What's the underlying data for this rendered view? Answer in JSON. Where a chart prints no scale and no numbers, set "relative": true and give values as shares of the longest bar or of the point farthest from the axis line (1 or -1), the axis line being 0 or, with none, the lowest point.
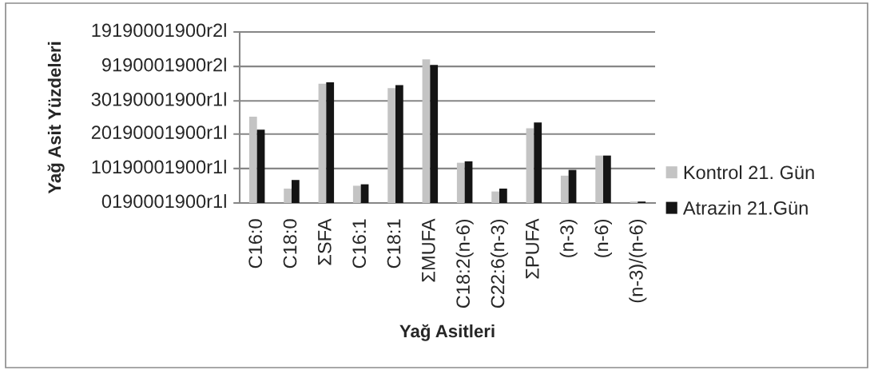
{
  "chart_data": {
    "type": "bar",
    "relative": true,
    "xlabel": "Yağ Asitleri",
    "annotations": [
      "Yağ Asit Yüzdeleri",
      "0190001900r1l"
    ],
    "categories": [
      "C16:0",
      "C18:0",
      "ΣSFA",
      "C16:1",
      "C18:1",
      "ΣMUFA",
      "C18:2(n-6)",
      "C22:6(n-3)",
      "ΣPUFA",
      "(n-3)",
      "(n-6)",
      "(n-3)/(n-6)"
    ],
    "series": [
      {
        "name": "Kontrol 21. Gün",
        "color": "#c4c4c4",
        "values": [
          0.6,
          0.1,
          0.83,
          0.12,
          0.8,
          1.0,
          0.28,
          0.08,
          0.52,
          0.19,
          0.33,
          0.01
        ]
      },
      {
        "name": "Atrazin 21.Gün",
        "color": "#141414",
        "values": [
          0.51,
          0.16,
          0.84,
          0.13,
          0.82,
          0.96,
          0.29,
          0.1,
          0.56,
          0.23,
          0.33,
          0.01
        ]
      }
    ],
    "ref_lines": [
      {
        "axis": "y",
        "value": 0.24,
        "label": "10190001900r1l",
        "color": "#868686"
      },
      {
        "axis": "y",
        "value": 0.48,
        "label": "20190001900r1l",
        "color": "#868686"
      },
      {
        "axis": "y",
        "value": 0.71,
        "label": "30190001900r1l",
        "color": "#868686"
      },
      {
        "axis": "y",
        "value": 0.95,
        "label": "9190001900r2l",
        "color": "#868686"
      },
      {
        "axis": "y",
        "value": 1.19,
        "label": "19190001900r2l",
        "color": "#868686"
      }
    ],
    "legend": "right"
  }
}
